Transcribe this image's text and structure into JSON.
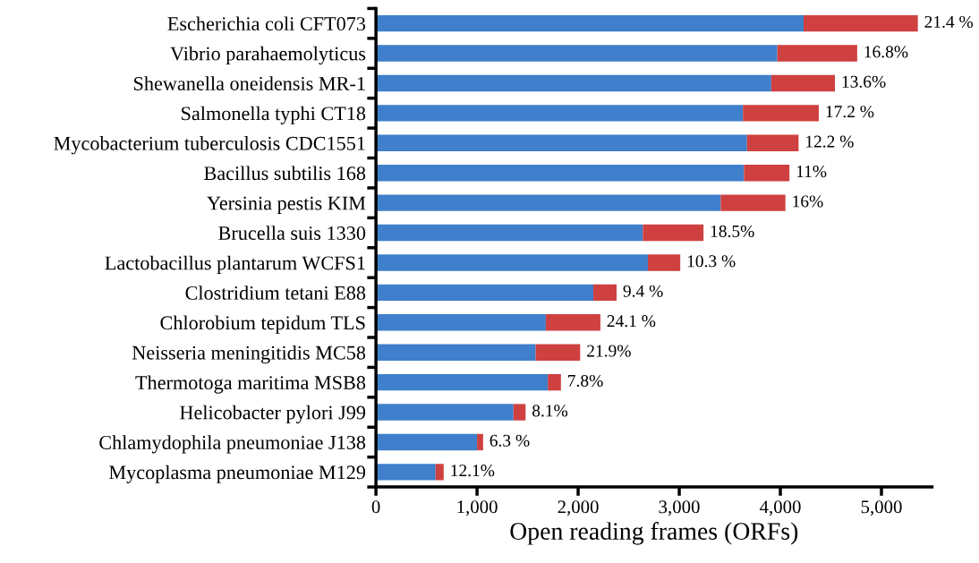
{
  "chart_data": {
    "type": "bar",
    "orientation": "horizontal",
    "stacked": true,
    "xlabel": "Open reading frames (ORFs)",
    "categories": [
      "Escherichia coli CFT073",
      "Vibrio parahaemolyticus",
      "Shewanella oneidensis MR-1",
      "Salmonella typhi CT18",
      "Mycobacterium tuberculosis CDC1551",
      "Bacillus subtilis 168",
      "Yersinia pestis KIM",
      "Brucella suis 1330",
      "Lactobacillus plantarum WCFS1",
      "Clostridium tetani E88",
      "Chlorobium tepidum TLS",
      "Neisseria meningitidis MC58",
      "Thermotoga maritima MSB8",
      "Helicobacter pylori J99",
      "Chlamydophila pneumoniae J138",
      "Mycoplasma pneumoniae M129"
    ],
    "series": [
      {
        "color": "#3f7fcb",
        "values": [
          4230,
          3970,
          3910,
          3630,
          3670,
          3640,
          3410,
          2640,
          2690,
          2150,
          1680,
          1580,
          1700,
          1360,
          1000,
          590
        ]
      },
      {
        "color": "#cf4040",
        "values": [
          1130,
          790,
          630,
          750,
          510,
          450,
          640,
          600,
          320,
          230,
          540,
          440,
          130,
          120,
          60,
          80
        ]
      }
    ],
    "annotations": [
      {
        "text": "21.4 %",
        "x": 5360,
        "y": "Escherichia coli CFT073"
      },
      {
        "text": "16.8%",
        "x": 4760,
        "y": "Vibrio parahaemolyticus"
      },
      {
        "text": "13.6%",
        "x": 4540,
        "y": "Shewanella oneidensis MR-1"
      },
      {
        "text": "17.2 %",
        "x": 4380,
        "y": "Salmonella typhi CT18"
      },
      {
        "text": "12.2 %",
        "x": 4180,
        "y": "Mycobacterium tuberculosis CDC1551"
      },
      {
        "text": "11%",
        "x": 4090,
        "y": "Bacillus subtilis 168"
      },
      {
        "text": "16%",
        "x": 4050,
        "y": "Yersinia pestis KIM"
      },
      {
        "text": "18.5%",
        "x": 3240,
        "y": "Brucella suis 1330"
      },
      {
        "text": "10.3 %",
        "x": 3010,
        "y": "Lactobacillus plantarum WCFS1"
      },
      {
        "text": "9.4 %",
        "x": 2380,
        "y": "Clostridium tetani E88"
      },
      {
        "text": "24.1 %",
        "x": 2220,
        "y": "Chlorobium tepidum TLS"
      },
      {
        "text": "21.9%",
        "x": 2020,
        "y": "Neisseria meningitidis MC58"
      },
      {
        "text": "7.8%",
        "x": 1830,
        "y": "Thermotoga maritima MSB8"
      },
      {
        "text": "8.1%",
        "x": 1480,
        "y": "Helicobacter pylori J99"
      },
      {
        "text": "6.3 %",
        "x": 1060,
        "y": "Chlamydophila pneumoniae J138"
      },
      {
        "text": "12.1%",
        "x": 670,
        "y": "Mycoplasma pneumoniae M129"
      }
    ],
    "xlim": [
      0,
      5500
    ],
    "xticks": [
      {
        "value": 0,
        "label": "0"
      },
      {
        "value": 1000,
        "label": "1,000"
      },
      {
        "value": 2000,
        "label": "2,000"
      },
      {
        "value": 3000,
        "label": "3,000"
      },
      {
        "value": 4000,
        "label": "4,000"
      },
      {
        "value": 5000,
        "label": "5,000"
      }
    ],
    "grid": false,
    "legend": false
  }
}
